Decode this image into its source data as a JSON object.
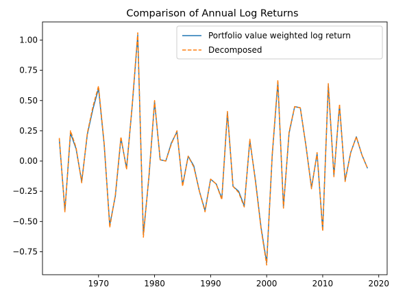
{
  "chart_data": {
    "type": "line",
    "title": "Comparison of Annual Log Returns",
    "xlabel": "",
    "ylabel": "",
    "xlim": [
      1960,
      2021.5
    ],
    "ylim": [
      -0.94,
      1.15
    ],
    "x_ticks": [
      1970,
      1980,
      1990,
      2000,
      2010,
      2020
    ],
    "y_ticks": [
      -0.75,
      -0.5,
      -0.25,
      0.0,
      0.25,
      0.5,
      0.75,
      1.0
    ],
    "y_tick_labels": [
      "−0.75",
      "−0.50",
      "−0.25",
      "0.00",
      "0.25",
      "0.50",
      "0.75",
      "1.00"
    ],
    "grid": false,
    "legend_position": "upper-right",
    "x": [
      1963,
      1964,
      1965,
      1966,
      1967,
      1968,
      1969,
      1970,
      1971,
      1972,
      1973,
      1974,
      1975,
      1976,
      1977,
      1978,
      1979,
      1980,
      1981,
      1982,
      1983,
      1984,
      1985,
      1986,
      1987,
      1988,
      1989,
      1990,
      1991,
      1992,
      1993,
      1994,
      1995,
      1996,
      1997,
      1998,
      1999,
      2000,
      2001,
      2002,
      2003,
      2004,
      2005,
      2006,
      2007,
      2008,
      2009,
      2010,
      2011,
      2012,
      2013,
      2014,
      2015,
      2016,
      2017,
      2018
    ],
    "series": [
      {
        "name": "Portfolio value weighted log return",
        "color": "#1f77b4",
        "style": "solid",
        "values": [
          0.18,
          -0.41,
          0.23,
          0.1,
          -0.17,
          0.22,
          0.43,
          0.6,
          0.14,
          -0.53,
          -0.29,
          0.19,
          -0.06,
          0.45,
          1.04,
          -0.61,
          -0.13,
          0.49,
          0.01,
          0,
          0.15,
          0.24,
          -0.2,
          0.04,
          -0.04,
          -0.25,
          -0.41,
          -0.15,
          -0.19,
          -0.31,
          0.4,
          -0.21,
          -0.25,
          -0.37,
          0.17,
          -0.16,
          -0.55,
          -0.84,
          0.05,
          0.65,
          -0.38,
          0.23,
          0.45,
          0.44,
          0.13,
          -0.22,
          0.06,
          -0.57,
          0.63,
          -0.12,
          0.46,
          -0.16,
          0.07,
          0.2,
          0.05,
          -0.06
        ]
      },
      {
        "name": "Decomposed",
        "color": "#ff7f0e",
        "style": "dashed",
        "values": [
          0.19,
          -0.42,
          0.25,
          0.11,
          -0.18,
          0.23,
          0.45,
          0.62,
          0.15,
          -0.55,
          -0.28,
          0.2,
          -0.07,
          0.46,
          1.06,
          -0.63,
          -0.12,
          0.5,
          0.01,
          0,
          0.14,
          0.25,
          -0.21,
          0.04,
          -0.05,
          -0.25,
          -0.42,
          -0.15,
          -0.19,
          -0.32,
          0.41,
          -0.21,
          -0.26,
          -0.38,
          0.18,
          -0.17,
          -0.56,
          -0.86,
          0.06,
          0.67,
          -0.39,
          0.24,
          0.45,
          0.44,
          0.13,
          -0.23,
          0.07,
          -0.58,
          0.64,
          -0.13,
          0.47,
          -0.17,
          0.07,
          0.2,
          0.05,
          -0.06
        ]
      }
    ]
  }
}
